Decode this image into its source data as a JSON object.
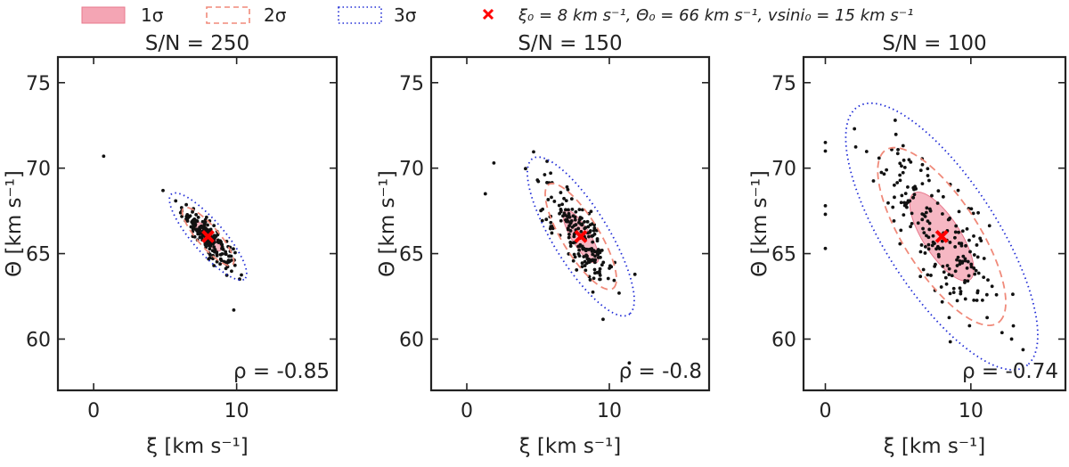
{
  "legend": {
    "one_sigma": "1σ",
    "two_sigma": "2σ",
    "three_sigma": "3σ",
    "truth_text": "ξ₀ = 8 km s⁻¹, Θ₀ = 66 km s⁻¹, vsini₀ = 15 km s⁻¹"
  },
  "colors": {
    "one_sigma_fill": "#f4a5b4",
    "one_sigma_edge": "#e8798d",
    "two_sigma": "#f08a7a",
    "three_sigma": "#1f2bd6",
    "truth_marker": "#ff0000",
    "points": "#111111"
  },
  "chart_data": [
    {
      "type": "scatter",
      "title": "S/N = 250",
      "xlabel": "ξ [km s⁻¹]",
      "ylabel": "Θ [km s⁻¹]",
      "xlim": [
        -2.5,
        17
      ],
      "ylim": [
        57,
        76.5
      ],
      "xticks": [
        0,
        10
      ],
      "yticks": [
        60,
        65,
        70,
        75
      ],
      "truth": [
        8,
        66
      ],
      "rho_label": "ρ = -0.85",
      "sigma_ellipses": {
        "center": [
          8,
          66
        ],
        "sx": 0.9,
        "sy": 0.85,
        "rho": -0.85
      },
      "n_points": 200,
      "outliers": [
        [
          0.7,
          70.7
        ],
        [
          9.8,
          61.7
        ]
      ]
    },
    {
      "type": "scatter",
      "title": "S/N = 150",
      "xlabel": "ξ [km s⁻¹]",
      "ylabel": "Θ [km s⁻¹]",
      "xlim": [
        -2.5,
        17
      ],
      "ylim": [
        57,
        76.5
      ],
      "xticks": [
        0,
        10
      ],
      "yticks": [
        60,
        65,
        70,
        75
      ],
      "truth": [
        8,
        66
      ],
      "rho_label": "ρ = -0.8",
      "sigma_ellipses": {
        "center": [
          8,
          66
        ],
        "sx": 1.25,
        "sy": 1.55,
        "rho": -0.8
      },
      "n_points": 200,
      "outliers": [
        [
          1.3,
          68.5
        ],
        [
          1.9,
          70.3
        ],
        [
          11.4,
          58.6
        ]
      ]
    },
    {
      "type": "scatter",
      "title": "S/N = 100",
      "xlabel": "ξ [km s⁻¹]",
      "ylabel": "Θ [km s⁻¹]",
      "xlim": [
        -1.5,
        16.5
      ],
      "ylim": [
        57,
        76.5
      ],
      "xticks": [
        0,
        10
      ],
      "yticks": [
        60,
        65,
        70,
        75
      ],
      "truth": [
        8,
        66
      ],
      "rho_label": "ρ = -0.74",
      "sigma_ellipses": {
        "center": [
          8,
          66
        ],
        "sx": 2.2,
        "sy": 2.6,
        "rho": -0.74
      },
      "n_points": 200,
      "outliers": [
        [
          0,
          71.5
        ],
        [
          0,
          71
        ],
        [
          0,
          67.8
        ],
        [
          0,
          67.3
        ],
        [
          0,
          65.3
        ],
        [
          2,
          72.3
        ],
        [
          4.8,
          72.8
        ],
        [
          12.8,
          60
        ]
      ]
    }
  ]
}
